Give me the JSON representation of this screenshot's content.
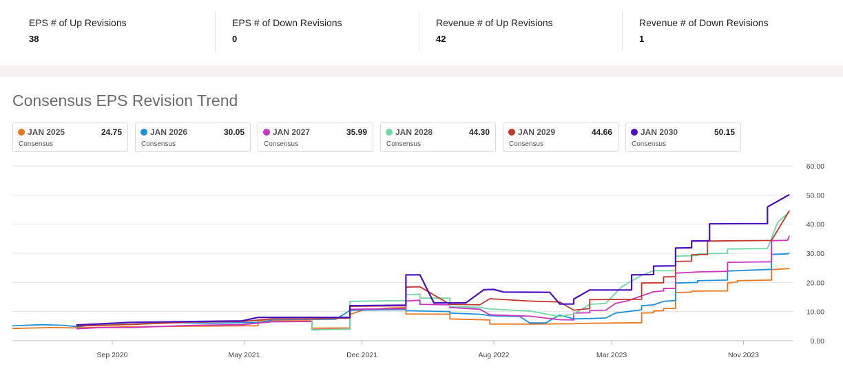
{
  "stats": [
    {
      "label": "EPS # of Up Revisions",
      "value": "38"
    },
    {
      "label": "EPS # of Down Revisions",
      "value": "0"
    },
    {
      "label": "Revenue # of Up Revisions",
      "value": "42"
    },
    {
      "label": "Revenue # of Down Revisions",
      "value": "1"
    }
  ],
  "chart_data": {
    "type": "line",
    "title": "Consensus EPS Revision Trend",
    "xlabel": "",
    "ylabel": "",
    "ylim": [
      0,
      60
    ],
    "y_ticks": [
      "0.00",
      "10.00",
      "20.00",
      "30.00",
      "40.00",
      "50.00",
      "60.00"
    ],
    "x_ticks": [
      {
        "label": "Sep 2020",
        "t": 2020.67
      },
      {
        "label": "May 2021",
        "t": 2021.33
      },
      {
        "label": "Dec 2021",
        "t": 2021.92
      },
      {
        "label": "Aug 2022",
        "t": 2022.58
      },
      {
        "label": "Mar 2023",
        "t": 2023.17
      },
      {
        "label": "Nov 2023",
        "t": 2023.83
      }
    ],
    "xlim": [
      2020.17,
      2024.08
    ],
    "grid": true,
    "legend_placement": "top",
    "series": [
      {
        "name": "JAN 2025",
        "sub": "Consensus",
        "value": "24.75",
        "color": "#e8761f",
        "points": [
          [
            2020.17,
            4.2
          ],
          [
            2020.37,
            4.5
          ],
          [
            2020.47,
            4.4
          ],
          [
            2020.62,
            4.6
          ],
          [
            2020.77,
            4.8
          ],
          [
            2021.07,
            5.0
          ],
          [
            2021.32,
            5.1
          ],
          [
            2021.4,
            5.1
          ],
          [
            2021.4,
            6.8
          ],
          [
            2021.47,
            6.8
          ],
          [
            2021.67,
            6.8
          ],
          [
            2021.67,
            4.3
          ],
          [
            2021.86,
            4.4
          ],
          [
            2021.86,
            9.0
          ],
          [
            2021.92,
            10.4
          ],
          [
            2022.05,
            11.2
          ],
          [
            2022.14,
            11.4
          ],
          [
            2022.14,
            9.2
          ],
          [
            2022.36,
            9.1
          ],
          [
            2022.36,
            7.5
          ],
          [
            2022.56,
            7.1
          ],
          [
            2022.56,
            5.7
          ],
          [
            2022.76,
            5.7
          ],
          [
            2022.98,
            5.8
          ],
          [
            2023.06,
            6.0
          ],
          [
            2023.22,
            6.1
          ],
          [
            2023.32,
            6.2
          ],
          [
            2023.32,
            9.5
          ],
          [
            2023.38,
            9.6
          ],
          [
            2023.38,
            10.2
          ],
          [
            2023.43,
            10.3
          ],
          [
            2023.43,
            11.0
          ],
          [
            2023.49,
            11.1
          ],
          [
            2023.49,
            16.5
          ],
          [
            2023.57,
            16.7
          ],
          [
            2023.57,
            17.0
          ],
          [
            2023.75,
            17.1
          ],
          [
            2023.75,
            19.8
          ],
          [
            2023.8,
            20.2
          ],
          [
            2023.8,
            20.6
          ],
          [
            2023.97,
            20.8
          ],
          [
            2023.97,
            24.4
          ],
          [
            2024.06,
            24.75
          ]
        ]
      },
      {
        "name": "JAN 2026",
        "sub": "Consensus",
        "value": "30.05",
        "color": "#1e90d9",
        "points": [
          [
            2020.17,
            5.1
          ],
          [
            2020.32,
            5.5
          ],
          [
            2020.42,
            5.3
          ],
          [
            2020.5,
            4.8
          ],
          [
            2020.57,
            5.4
          ],
          [
            2020.74,
            6.3
          ],
          [
            2020.99,
            6.2
          ],
          [
            2021.17,
            6.0
          ],
          [
            2021.42,
            6.3
          ],
          [
            2021.47,
            7.2
          ],
          [
            2021.79,
            7.4
          ],
          [
            2021.86,
            10.4
          ],
          [
            2021.92,
            10.5
          ],
          [
            2022.14,
            10.7
          ],
          [
            2022.14,
            10.3
          ],
          [
            2022.36,
            10.0
          ],
          [
            2022.36,
            9.5
          ],
          [
            2022.51,
            9.1
          ],
          [
            2022.56,
            8.6
          ],
          [
            2022.71,
            8.3
          ],
          [
            2022.76,
            6.1
          ],
          [
            2022.84,
            6.1
          ],
          [
            2022.91,
            8.8
          ],
          [
            2022.98,
            7.5
          ],
          [
            2023.06,
            7.6
          ],
          [
            2023.14,
            7.8
          ],
          [
            2023.19,
            9.5
          ],
          [
            2023.32,
            10.6
          ],
          [
            2023.32,
            12.0
          ],
          [
            2023.38,
            12.3
          ],
          [
            2023.43,
            13.5
          ],
          [
            2023.49,
            13.8
          ],
          [
            2023.49,
            19.8
          ],
          [
            2023.6,
            20.0
          ],
          [
            2023.6,
            20.6
          ],
          [
            2023.75,
            20.8
          ],
          [
            2023.75,
            23.9
          ],
          [
            2023.97,
            24.5
          ],
          [
            2023.97,
            29.6
          ],
          [
            2024.05,
            29.8
          ],
          [
            2024.06,
            30.05
          ]
        ]
      },
      {
        "name": "JAN 2027",
        "sub": "Consensus",
        "value": "35.99",
        "color": "#c934c0",
        "points": [
          [
            2020.49,
            4.1
          ],
          [
            2020.62,
            4.5
          ],
          [
            2020.77,
            4.5
          ],
          [
            2021.07,
            5.3
          ],
          [
            2021.32,
            5.5
          ],
          [
            2021.47,
            6.5
          ],
          [
            2021.67,
            6.6
          ],
          [
            2021.67,
            3.8
          ],
          [
            2021.86,
            4.0
          ],
          [
            2021.86,
            10.8
          ],
          [
            2022.14,
            11.0
          ],
          [
            2022.14,
            13.6
          ],
          [
            2022.21,
            13.9
          ],
          [
            2022.21,
            12.5
          ],
          [
            2022.36,
            12.3
          ],
          [
            2022.36,
            11.4
          ],
          [
            2022.51,
            10.8
          ],
          [
            2022.56,
            8.9
          ],
          [
            2022.76,
            8.4
          ],
          [
            2022.91,
            7.2
          ],
          [
            2022.98,
            7.1
          ],
          [
            2022.98,
            9.5
          ],
          [
            2023.06,
            9.6
          ],
          [
            2023.06,
            10.4
          ],
          [
            2023.14,
            10.5
          ],
          [
            2023.19,
            12.8
          ],
          [
            2023.25,
            13.7
          ],
          [
            2023.38,
            16.8
          ],
          [
            2023.43,
            17.1
          ],
          [
            2023.43,
            17.9
          ],
          [
            2023.49,
            18.0
          ],
          [
            2023.49,
            23.2
          ],
          [
            2023.6,
            23.6
          ],
          [
            2023.75,
            23.8
          ],
          [
            2023.75,
            26.9
          ],
          [
            2023.97,
            27.1
          ],
          [
            2023.97,
            34.3
          ],
          [
            2024.05,
            34.5
          ],
          [
            2024.06,
            35.99
          ]
        ]
      },
      {
        "name": "JAN 2028",
        "sub": "Consensus",
        "value": "44.30",
        "color": "#72d6a6",
        "points": [
          [
            2020.49,
            5.5
          ],
          [
            2020.77,
            5.7
          ],
          [
            2021.07,
            6.4
          ],
          [
            2021.32,
            6.7
          ],
          [
            2021.47,
            7.4
          ],
          [
            2021.67,
            7.5
          ],
          [
            2021.67,
            3.7
          ],
          [
            2021.86,
            4.0
          ],
          [
            2021.86,
            13.5
          ],
          [
            2022.14,
            13.8
          ],
          [
            2022.14,
            15.8
          ],
          [
            2022.21,
            16.0
          ],
          [
            2022.21,
            14.6
          ],
          [
            2022.36,
            14.6
          ],
          [
            2022.36,
            11.8
          ],
          [
            2022.51,
            11.4
          ],
          [
            2022.56,
            10.9
          ],
          [
            2022.76,
            10.2
          ],
          [
            2022.91,
            8.3
          ],
          [
            2022.98,
            9.2
          ],
          [
            2023.06,
            12.5
          ],
          [
            2023.14,
            12.8
          ],
          [
            2023.22,
            18.5
          ],
          [
            2023.32,
            22.5
          ],
          [
            2023.38,
            24.0
          ],
          [
            2023.49,
            24.0
          ],
          [
            2023.49,
            29.0
          ],
          [
            2023.6,
            29.2
          ],
          [
            2023.6,
            29.8
          ],
          [
            2023.75,
            30.0
          ],
          [
            2023.75,
            31.5
          ],
          [
            2023.95,
            31.6
          ],
          [
            2024.0,
            40.5
          ],
          [
            2024.06,
            44.3
          ]
        ]
      },
      {
        "name": "JAN 2029",
        "sub": "Consensus",
        "value": "44.66",
        "color": "#c0392b",
        "points": [
          [
            2020.49,
            5.0
          ],
          [
            2020.77,
            5.6
          ],
          [
            2021.07,
            6.4
          ],
          [
            2021.32,
            6.6
          ],
          [
            2021.47,
            7.5
          ],
          [
            2021.67,
            7.5
          ],
          [
            2021.86,
            7.8
          ],
          [
            2021.86,
            11.8
          ],
          [
            2022.14,
            12.0
          ],
          [
            2022.14,
            18.4
          ],
          [
            2022.21,
            18.5
          ],
          [
            2022.36,
            12.5
          ],
          [
            2022.51,
            12.3
          ],
          [
            2022.56,
            14.4
          ],
          [
            2022.76,
            13.6
          ],
          [
            2022.91,
            13.3
          ],
          [
            2022.98,
            10.5
          ],
          [
            2023.06,
            11.0
          ],
          [
            2023.06,
            14.1
          ],
          [
            2023.32,
            14.2
          ],
          [
            2023.32,
            19.8
          ],
          [
            2023.43,
            19.9
          ],
          [
            2023.43,
            21.9
          ],
          [
            2023.49,
            22.0
          ],
          [
            2023.49,
            27.2
          ],
          [
            2023.57,
            27.3
          ],
          [
            2023.57,
            29.5
          ],
          [
            2023.65,
            29.6
          ],
          [
            2023.65,
            34.2
          ],
          [
            2023.97,
            34.4
          ],
          [
            2024.06,
            44.66
          ]
        ]
      },
      {
        "name": "JAN 2030",
        "sub": "Consensus",
        "value": "50.15",
        "color": "#4b0ec0",
        "points": [
          [
            2020.49,
            5.4
          ],
          [
            2020.77,
            6.3
          ],
          [
            2021.07,
            6.6
          ],
          [
            2021.32,
            6.8
          ],
          [
            2021.4,
            8.0
          ],
          [
            2021.86,
            8.0
          ],
          [
            2021.86,
            12.0
          ],
          [
            2022.14,
            12.2
          ],
          [
            2022.14,
            22.6
          ],
          [
            2022.21,
            22.6
          ],
          [
            2022.28,
            13.0
          ],
          [
            2022.44,
            13.0
          ],
          [
            2022.53,
            17.5
          ],
          [
            2022.58,
            17.6
          ],
          [
            2022.63,
            16.7
          ],
          [
            2022.86,
            16.6
          ],
          [
            2022.91,
            12.6
          ],
          [
            2022.98,
            12.6
          ],
          [
            2022.98,
            14.3
          ],
          [
            2023.06,
            17.4
          ],
          [
            2023.19,
            17.4
          ],
          [
            2023.27,
            17.4
          ],
          [
            2023.27,
            22.6
          ],
          [
            2023.38,
            22.7
          ],
          [
            2023.38,
            25.6
          ],
          [
            2023.49,
            25.7
          ],
          [
            2023.49,
            31.8
          ],
          [
            2023.57,
            31.9
          ],
          [
            2023.57,
            34.2
          ],
          [
            2023.66,
            34.3
          ],
          [
            2023.66,
            40.1
          ],
          [
            2023.95,
            40.2
          ],
          [
            2023.95,
            45.9
          ],
          [
            2024.06,
            50.15
          ]
        ]
      }
    ]
  }
}
